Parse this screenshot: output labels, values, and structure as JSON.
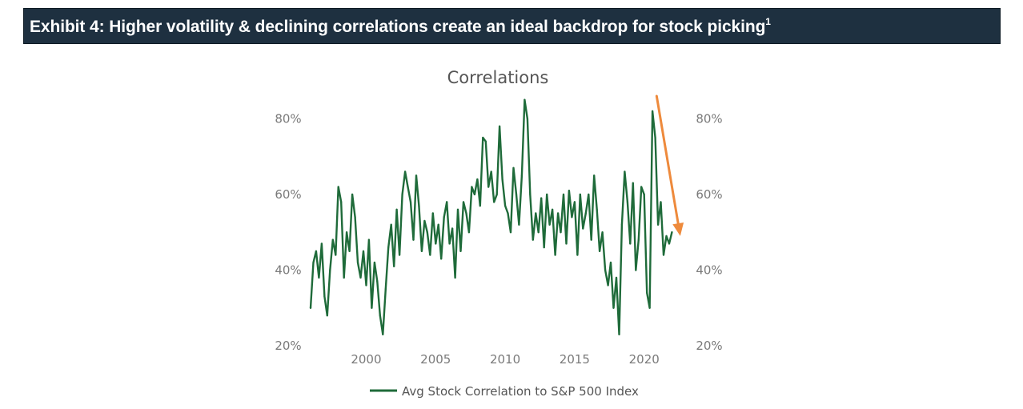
{
  "exhibit": {
    "title": "Exhibit 4: Higher volatility & declining correlations create an ideal backdrop for stock picking",
    "footnote_marker": "1"
  },
  "colors": {
    "banner_bg": "#1e3040",
    "series_line": "#1f6b3a",
    "arrow": "#ee8a3c",
    "axis_text": "#7a7a7a"
  },
  "chart_data": {
    "type": "line",
    "title": "Correlations",
    "xlabel": "",
    "ylabel": "",
    "xlim": [
      1996,
      2023.3
    ],
    "ylim": [
      20,
      86
    ],
    "x_ticks": [
      2000,
      2005,
      2010,
      2015,
      2020
    ],
    "x_tick_labels": [
      "2000",
      "2005",
      "2010",
      "2015",
      "2020"
    ],
    "y_ticks": [
      20,
      40,
      60,
      80
    ],
    "y_tick_labels": [
      "20%",
      "40%",
      "60%",
      "80%"
    ],
    "right_axis_mirrored": true,
    "grid": false,
    "legend_position": "bottom",
    "series": [
      {
        "name": "Avg Stock Correlation to S&P 500 Index",
        "x": [
          1996.0,
          1996.2,
          1996.4,
          1996.6,
          1996.8,
          1997.0,
          1997.2,
          1997.4,
          1997.6,
          1997.8,
          1998.0,
          1998.2,
          1998.4,
          1998.6,
          1998.8,
          1999.0,
          1999.2,
          1999.4,
          1999.6,
          1999.8,
          2000.0,
          2000.2,
          2000.4,
          2000.6,
          2000.8,
          2001.0,
          2001.2,
          2001.4,
          2001.6,
          2001.8,
          2002.0,
          2002.2,
          2002.4,
          2002.6,
          2002.8,
          2003.0,
          2003.2,
          2003.4,
          2003.6,
          2003.8,
          2004.0,
          2004.2,
          2004.4,
          2004.6,
          2004.8,
          2005.0,
          2005.2,
          2005.4,
          2005.6,
          2005.8,
          2006.0,
          2006.2,
          2006.4,
          2006.6,
          2006.8,
          2007.0,
          2007.2,
          2007.4,
          2007.6,
          2007.8,
          2008.0,
          2008.2,
          2008.4,
          2008.6,
          2008.8,
          2009.0,
          2009.2,
          2009.4,
          2009.6,
          2009.8,
          2010.0,
          2010.2,
          2010.4,
          2010.6,
          2010.8,
          2011.0,
          2011.2,
          2011.4,
          2011.6,
          2011.8,
          2012.0,
          2012.2,
          2012.4,
          2012.6,
          2012.8,
          2013.0,
          2013.2,
          2013.4,
          2013.6,
          2013.8,
          2014.0,
          2014.2,
          2014.4,
          2014.6,
          2014.8,
          2015.0,
          2015.2,
          2015.4,
          2015.6,
          2015.8,
          2016.0,
          2016.2,
          2016.4,
          2016.6,
          2016.8,
          2017.0,
          2017.2,
          2017.4,
          2017.6,
          2017.8,
          2018.0,
          2018.2,
          2018.4,
          2018.6,
          2018.8,
          2019.0,
          2019.2,
          2019.4,
          2019.6,
          2019.8,
          2020.0,
          2020.2,
          2020.4,
          2020.6,
          2020.8,
          2021.0,
          2021.2,
          2021.4,
          2021.6,
          2021.8,
          2022.0
        ],
        "values": [
          30,
          42,
          45,
          38,
          47,
          33,
          28,
          40,
          48,
          44,
          62,
          58,
          38,
          50,
          45,
          60,
          54,
          42,
          38,
          45,
          36,
          48,
          30,
          42,
          37,
          28,
          23,
          35,
          46,
          52,
          41,
          56,
          44,
          60,
          66,
          62,
          58,
          48,
          65,
          57,
          45,
          53,
          50,
          44,
          55,
          47,
          52,
          43,
          54,
          58,
          47,
          51,
          38,
          56,
          45,
          58,
          55,
          50,
          62,
          60,
          64,
          57,
          75,
          74,
          62,
          66,
          58,
          60,
          78,
          64,
          57,
          55,
          50,
          67,
          60,
          52,
          65,
          85,
          80,
          60,
          48,
          55,
          50,
          59,
          46,
          60,
          52,
          56,
          44,
          55,
          50,
          60,
          47,
          61,
          54,
          58,
          44,
          60,
          51,
          55,
          60,
          48,
          65,
          56,
          45,
          50,
          40,
          36,
          42,
          30,
          38,
          23,
          52,
          66,
          58,
          47,
          63,
          40,
          48,
          62,
          60,
          34,
          30,
          82,
          75,
          52,
          58,
          44,
          49,
          47,
          50
        ]
      }
    ],
    "annotations": [
      {
        "type": "arrow",
        "meaning": "downward trend in correlations",
        "from": [
          2020.9,
          86
        ],
        "to": [
          2022.6,
          49
        ]
      }
    ]
  }
}
